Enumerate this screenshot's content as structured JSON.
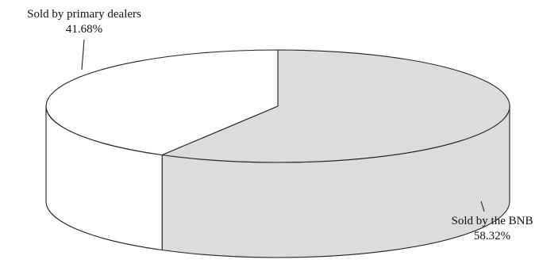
{
  "chart_data": {
    "type": "pie",
    "title": "",
    "categories": [
      "Sold by primary dealers",
      "Sold by the BNB"
    ],
    "values": [
      41.68,
      58.32
    ],
    "value_labels": [
      "41.68%",
      "58.32%"
    ],
    "unit": "%",
    "style": "3d",
    "legend": "none",
    "colors": {
      "Sold by primary dealers": "#ffffff",
      "Sold by the BNB": "#dcdcdc",
      "outline": "#222222"
    }
  }
}
